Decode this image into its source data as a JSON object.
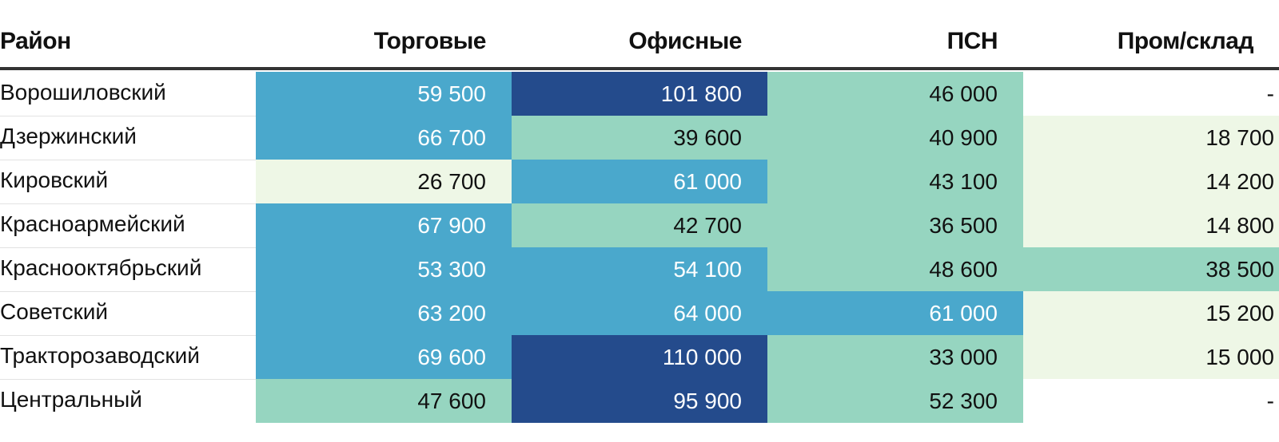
{
  "chart_data": {
    "type": "table",
    "columns": [
      "Район",
      "Торговые",
      "Офисные",
      "ПСН",
      "Пром/склад"
    ],
    "rows": [
      {
        "name": "Ворошиловский",
        "values": [
          "59 500",
          "101 800",
          "46 000",
          "-"
        ]
      },
      {
        "name": "Дзержинский",
        "values": [
          "66 700",
          "39 600",
          "40 900",
          "18 700"
        ]
      },
      {
        "name": "Кировский",
        "values": [
          "26 700",
          "61 000",
          "43 100",
          "14 200"
        ]
      },
      {
        "name": "Красноармейский",
        "values": [
          "67 900",
          "42 700",
          "36 500",
          "14 800"
        ]
      },
      {
        "name": "Краснооктябрьский",
        "values": [
          "53 300",
          "54 100",
          "48 600",
          "38 500"
        ]
      },
      {
        "name": "Советский",
        "values": [
          "63 200",
          "64 000",
          "61 000",
          "15 200"
        ]
      },
      {
        "name": "Тракторозаводский",
        "values": [
          "69 600",
          "110 000",
          "33 000",
          "15 000"
        ]
      },
      {
        "name": "Центральный",
        "values": [
          "47 600",
          "95 900",
          "52 300",
          "-"
        ]
      }
    ],
    "color_scale": {
      "empty": "#ffffff",
      "bands": [
        {
          "max": 30000,
          "fill": "#eef7e6",
          "text": "#111111"
        },
        {
          "max": 53000,
          "fill": "#96d5c0",
          "text": "#111111"
        },
        {
          "max": 80000,
          "fill": "#4aa8cc",
          "text": "#ffffff"
        },
        {
          "max": 1000000,
          "fill": "#244b8c",
          "text": "#ffffff"
        }
      ]
    }
  }
}
